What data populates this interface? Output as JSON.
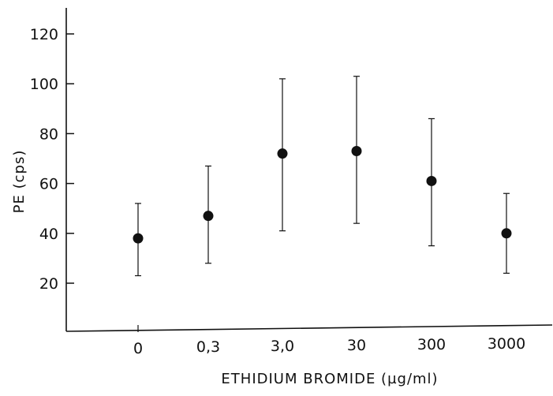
{
  "chart_data": {
    "type": "scatter",
    "title": "",
    "xlabel": "ETHIDIUM BROMIDE (µg/ml)",
    "ylabel": "PE (cps)",
    "categories": [
      "0",
      "0,3",
      "3,0",
      "30",
      "300",
      "3000"
    ],
    "y_ticks": [
      "20",
      "40",
      "60",
      "80",
      "100",
      "120"
    ],
    "y_tick_values": [
      20,
      40,
      60,
      80,
      100,
      120
    ],
    "ylim": [
      0,
      130
    ],
    "grid": false,
    "legend": "none",
    "series": [
      {
        "values": [
          38,
          47,
          72,
          73,
          61,
          40
        ],
        "error_low": [
          23,
          28,
          41,
          44,
          35,
          24
        ],
        "error_high": [
          52,
          67,
          102,
          103,
          86,
          56
        ]
      }
    ]
  }
}
